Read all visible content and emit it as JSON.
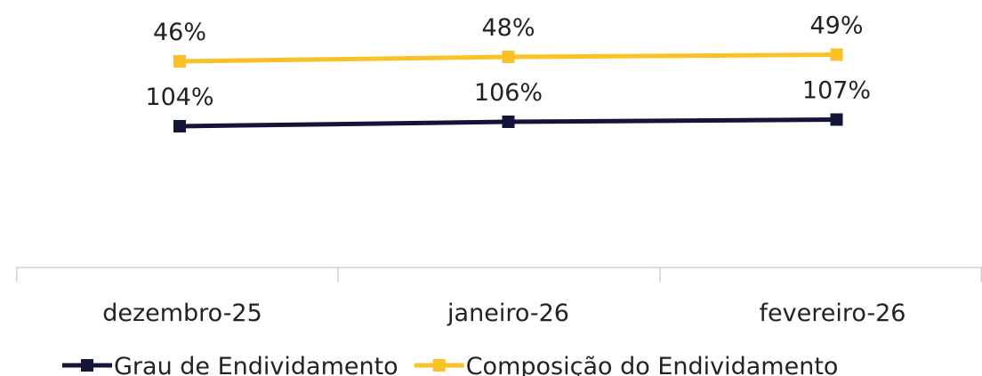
{
  "chart_data": {
    "type": "line",
    "categories": [
      "dezembro-25",
      "janeiro-26",
      "fevereiro-26"
    ],
    "series": [
      {
        "name": "Grau de Endividamento",
        "values": [
          104,
          106,
          107
        ],
        "labels": [
          "104%",
          "106%",
          "107%"
        ],
        "color": "#14143a",
        "marker": "square"
      },
      {
        "name": "Composição do Endividamento",
        "values": [
          46,
          48,
          49
        ],
        "labels": [
          "46%",
          "48%",
          "49%"
        ],
        "color": "#fbc226",
        "marker": "square"
      }
    ],
    "data_labels": true,
    "grid": false,
    "legend": "bottom",
    "axis_color": "#d0d0d0"
  }
}
